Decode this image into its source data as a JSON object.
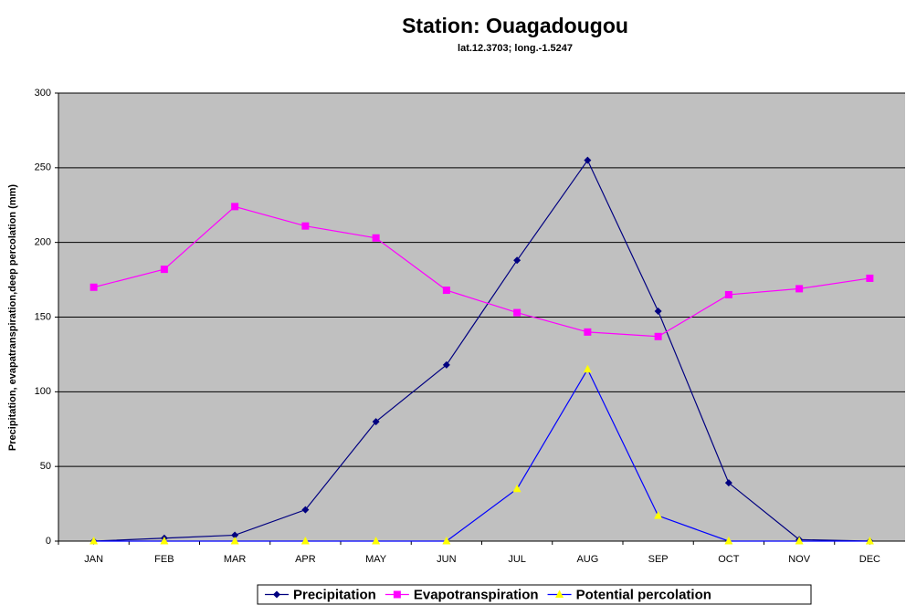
{
  "chart_data": {
    "type": "line",
    "title": "Station: Ouagadougou",
    "subtitle": "lat.12.3703; long.-1.5247",
    "y_label": "Precipitation, evapatranspiration,deep percolation (mm)",
    "categories": [
      "JAN",
      "FEB",
      "MAR",
      "APR",
      "MAY",
      "JUN",
      "JUL",
      "AUG",
      "SEP",
      "OCT",
      "NOV",
      "DEC"
    ],
    "series": [
      {
        "name": "Precipitation",
        "color": "#000080",
        "marker": "diamond",
        "marker_color": "#000080",
        "values": [
          0,
          2,
          4,
          21,
          80,
          118,
          188,
          255,
          154,
          39,
          1,
          0
        ]
      },
      {
        "name": "Evapotranspiration",
        "color": "#ff00ff",
        "marker": "square",
        "marker_color": "#ff00ff",
        "values": [
          170,
          182,
          224,
          211,
          203,
          168,
          153,
          140,
          137,
          165,
          169,
          176
        ]
      },
      {
        "name": "Potential percolation",
        "color": "#0000ff",
        "marker": "triangle",
        "marker_color": "#ffff00",
        "values": [
          0,
          0,
          0,
          0,
          0,
          0,
          35,
          115,
          17,
          0,
          0,
          0
        ]
      }
    ],
    "ylim": [
      0,
      300
    ],
    "yticks": [
      0,
      50,
      100,
      150,
      200,
      250,
      300
    ],
    "grid": true,
    "plot_background": "#c0c0c0",
    "legend": "bottom"
  }
}
